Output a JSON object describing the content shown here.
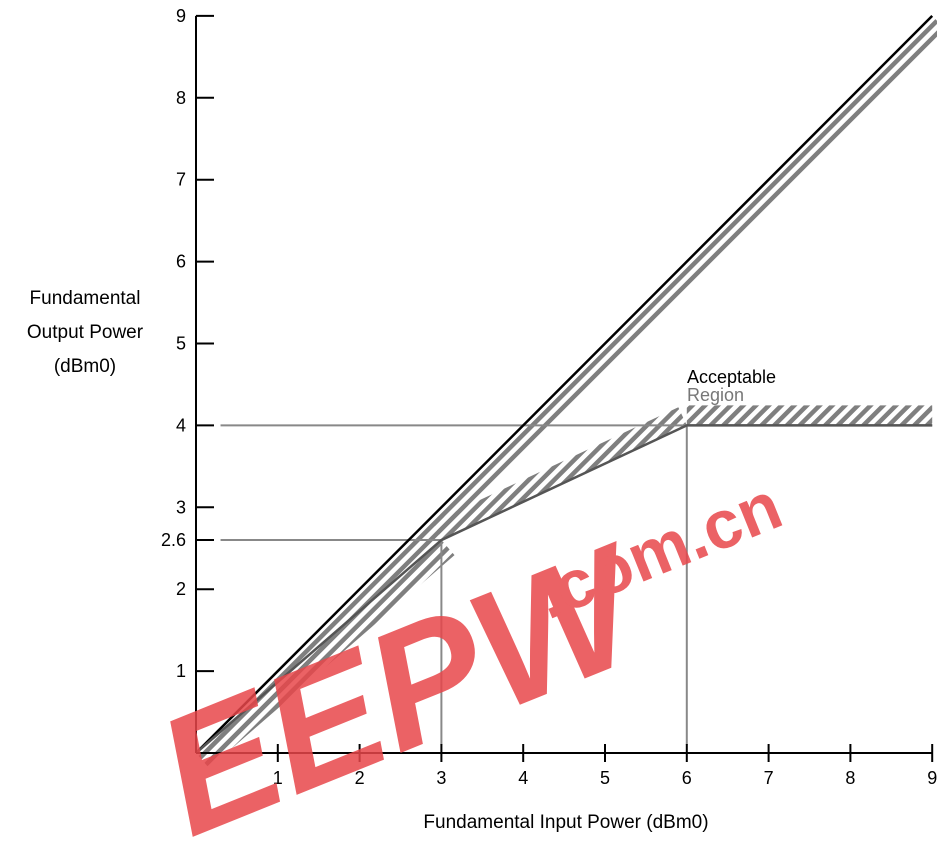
{
  "chart_data": {
    "type": "line",
    "xlabel": "Fundamental Input Power (dBm0)",
    "ylabel_lines": [
      "Fundamental",
      "Output Power",
      "(dBm0)"
    ],
    "xlim": [
      0,
      9
    ],
    "ylim": [
      0,
      9
    ],
    "x_ticks": [
      1,
      2,
      3,
      4,
      5,
      6,
      7,
      8,
      9
    ],
    "y_ticks": [
      {
        "value": 1,
        "label": "1"
      },
      {
        "value": 2,
        "label": "2"
      },
      {
        "value": 2.6,
        "label": "2.6"
      },
      {
        "value": 3,
        "label": "3"
      },
      {
        "value": 4,
        "label": "4"
      },
      {
        "value": 5,
        "label": "5"
      },
      {
        "value": 6,
        "label": "6"
      },
      {
        "value": 7,
        "label": "7"
      },
      {
        "value": 8,
        "label": "8"
      },
      {
        "value": 9,
        "label": "9"
      }
    ],
    "series": [
      {
        "values": [
          {
            "x": 0,
            "y": 0
          },
          {
            "x": 9,
            "y": 9
          }
        ]
      },
      {
        "values": [
          {
            "x": 0,
            "y": 0
          },
          {
            "x": 3,
            "y": 2.6
          },
          {
            "x": 6,
            "y": 4
          },
          {
            "x": 9,
            "y": 4
          }
        ]
      }
    ],
    "reference_lines": [
      {
        "orientation": "horizontal",
        "y": 4,
        "x_from": 0.3,
        "x_to": 9
      },
      {
        "orientation": "horizontal",
        "y": 2.6,
        "x_from": 0.3,
        "x_to": 3
      },
      {
        "orientation": "vertical",
        "x": 3,
        "y_from": 0.1,
        "y_to": 2.6
      },
      {
        "orientation": "vertical",
        "x": 6,
        "y_from": 0.1,
        "y_to": 4
      }
    ],
    "hatched_boundaries": [
      {
        "from": {
          "x": 0,
          "y": 0
        },
        "to": {
          "x": 9,
          "y": 9
        },
        "side": "upper"
      },
      {
        "from": {
          "x": 0,
          "y": 0
        },
        "to": {
          "x": 3,
          "y": 2.6
        },
        "side": "upper"
      },
      {
        "from": {
          "x": 3,
          "y": 2.6
        },
        "to": {
          "x": 6,
          "y": 4
        },
        "side": "lower"
      },
      {
        "from": {
          "x": 6,
          "y": 4
        },
        "to": {
          "x": 9,
          "y": 4
        },
        "side": "lower"
      }
    ],
    "annotations": [
      "Acceptable",
      "Region"
    ],
    "grid": false,
    "colors": {
      "primary_line": "#000000",
      "secondary_line": "#555555",
      "reference_line": "#888888",
      "hatch": "#7f7f7f"
    }
  },
  "watermark": {
    "text": "EEPW",
    "suffix": ".com.cn",
    "color": "#e8474b"
  }
}
